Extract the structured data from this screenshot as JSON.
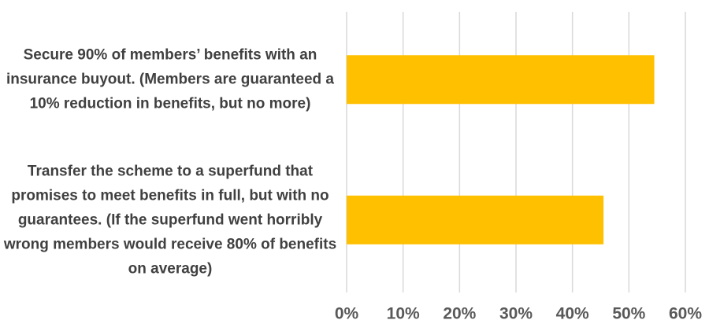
{
  "chart_data": {
    "type": "bar",
    "orientation": "horizontal",
    "categories": [
      "Secure 90% of members’ benefits with an insurance buyout. (Members are guaranteed a 10% reduction in benefits, but no more)",
      "Transfer the scheme to a superfund that promises to meet benefits in full, but with no guarantees. (If the superfund went horribly wrong members would receive 80% of benefits on average)"
    ],
    "values": [
      54.5,
      45.5
    ],
    "color": "#ffc000",
    "xlim": [
      0,
      60
    ],
    "xticks": [
      {
        "value": 0,
        "label": "0%"
      },
      {
        "value": 10,
        "label": "10%"
      },
      {
        "value": 20,
        "label": "20%"
      },
      {
        "value": 30,
        "label": "30%"
      },
      {
        "value": 40,
        "label": "40%"
      },
      {
        "value": 50,
        "label": "50%"
      },
      {
        "value": 60,
        "label": "60%"
      }
    ],
    "grid": true
  }
}
